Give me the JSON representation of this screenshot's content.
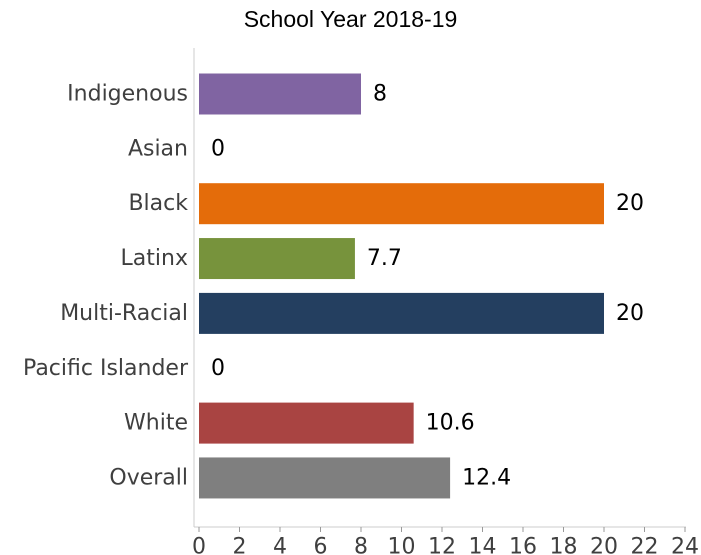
{
  "chart_data": {
    "type": "bar",
    "orientation": "horizontal",
    "title": "School Year 2018-19",
    "categories": [
      "Indigenous",
      "Asian",
      "Black",
      "Latinx",
      "Multi-Racial",
      "Pacific Islander",
      "White",
      "Overall"
    ],
    "values": [
      8,
      0,
      20,
      7.7,
      20,
      0,
      10.6,
      12.4
    ],
    "value_labels": [
      "8",
      "0",
      "20",
      "7.7",
      "20",
      "0",
      "10.6",
      "12.4"
    ],
    "colors": [
      "#8064a2",
      "#7f7f7f",
      "#e46c0a",
      "#77933c",
      "#243f60",
      "#4bacc6",
      "#a94442",
      "#7f7f7f"
    ],
    "xlim": [
      0,
      24
    ],
    "xticks": [
      0,
      2,
      4,
      6,
      8,
      10,
      12,
      14,
      16,
      18,
      20,
      22,
      24
    ],
    "grid": false
  }
}
